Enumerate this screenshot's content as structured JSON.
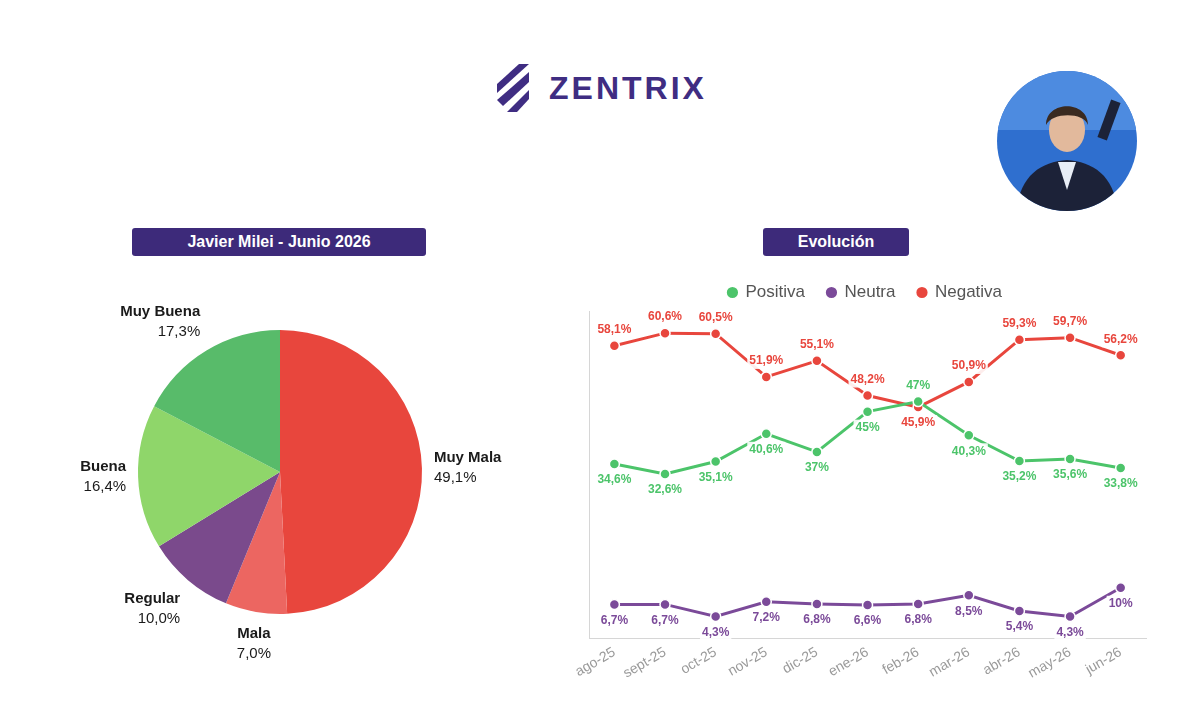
{
  "header": {
    "brand": "ZENTRIX"
  },
  "chart_data": [
    {
      "type": "pie",
      "title": "Javier Milei - Junio 2026",
      "categories": [
        "Muy Mala",
        "Mala",
        "Regular",
        "Buena",
        "Muy Buena"
      ],
      "values": [
        49.1,
        7.0,
        10.0,
        16.4,
        17.3
      ],
      "value_labels": [
        "49,1%",
        "7,0%",
        "10,0%",
        "16,4%",
        "17,3%"
      ],
      "colors": [
        "#e8463d",
        "#ec6661",
        "#7a4a8c",
        "#8fd66a",
        "#58bb6a"
      ],
      "data_labels": true
    },
    {
      "type": "line",
      "title": "Evolución",
      "categories": [
        "ago-25",
        "sept-25",
        "oct-25",
        "nov-25",
        "dic-25",
        "ene-26",
        "feb-26",
        "mar-26",
        "abr-26",
        "may-26",
        "jun-26"
      ],
      "series": [
        {
          "name": "Positiva",
          "color": "#4cc46a",
          "values": [
            34.6,
            32.6,
            35.1,
            40.6,
            37,
            45,
            47,
            40.3,
            35.2,
            35.6,
            33.8
          ],
          "value_labels": [
            "34,6%",
            "32,6%",
            "35,1%",
            "40,6%",
            "37%",
            "45%",
            "47%",
            "40,3%",
            "35,2%",
            "35,6%",
            "33,8%"
          ]
        },
        {
          "name": "Neutra",
          "color": "#7b4a99",
          "values": [
            6.7,
            6.7,
            4.3,
            7.2,
            6.8,
            6.6,
            6.8,
            8.5,
            5.4,
            4.3,
            10
          ],
          "value_labels": [
            "6,7%",
            "6,7%",
            "4,3%",
            "7,2%",
            "6,8%",
            "6,6%",
            "6,8%",
            "8,5%",
            "5,4%",
            "4,3%",
            "10%"
          ]
        },
        {
          "name": "Negativa",
          "color": "#e8463d",
          "values": [
            58.1,
            60.6,
            60.5,
            51.9,
            55.1,
            48.2,
            45.9,
            50.9,
            59.3,
            59.7,
            56.2
          ],
          "value_labels": [
            "58,1%",
            "60,6%",
            "60,5%",
            "51,9%",
            "55,1%",
            "48,2%",
            "45,9%",
            "50,9%",
            "59,3%",
            "59,7%",
            "56,2%"
          ]
        }
      ],
      "ylim": [
        0,
        65
      ],
      "tick_labels": "x",
      "grid": false,
      "legend": "top",
      "data_labels": true,
      "marker": "circle"
    }
  ]
}
